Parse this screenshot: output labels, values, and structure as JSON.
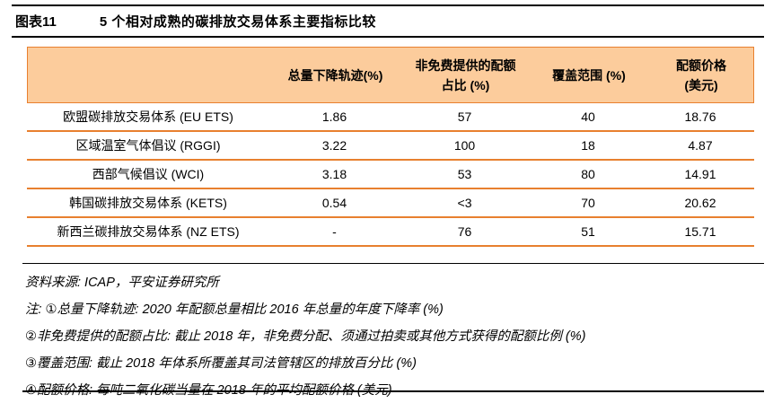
{
  "header": {
    "figure_label": "图表11",
    "title": "5 个相对成熟的碳排放交易体系主要指标比较"
  },
  "table": {
    "header": {
      "col_system": "",
      "col_cap_trajectory": "总量下降轨迹(%)",
      "col_auction_share_line1": "非免费提供的配额",
      "col_auction_share_line2": "占比 (%)",
      "col_coverage": "覆盖范围 (%)",
      "col_price_line1": "配额价格",
      "col_price_line2": "(美元)"
    },
    "rows": [
      {
        "name": "欧盟碳排放交易体系 (EU ETS)",
        "cap_trajectory": "1.86",
        "auction_share": "57",
        "coverage": "40",
        "price": "18.76"
      },
      {
        "name": "区域温室气体倡议 (RGGI)",
        "cap_trajectory": "3.22",
        "auction_share": "100",
        "coverage": "18",
        "price": "4.87"
      },
      {
        "name": "西部气候倡议 (WCI)",
        "cap_trajectory": "3.18",
        "auction_share": "53",
        "coverage": "80",
        "price": "14.91"
      },
      {
        "name": "韩国碳排放交易体系 (KETS)",
        "cap_trajectory": "0.54",
        "auction_share": "<3",
        "coverage": "70",
        "price": "20.62"
      },
      {
        "name": "新西兰碳排放交易体系 (NZ ETS)",
        "cap_trajectory": "-",
        "auction_share": "76",
        "coverage": "51",
        "price": "15.71"
      }
    ]
  },
  "footnotes": {
    "source": "资料来源: ICAP，平安证券研究所",
    "notes": [
      "注: ①总量下降轨迹: 2020 年配额总量相比 2016 年总量的年度下降率 (%)",
      "②非免费提供的配额占比: 截止 2018 年，非免费分配、须通过拍卖或其他方式获得的配额比例 (%)",
      "③覆盖范围: 截止 2018 年体系所覆盖其司法管辖区的排放百分比 (%)",
      "④配额价格: 每吨二氧化碳当量在 2018 年的平均配额价格 (美元)"
    ]
  },
  "colors": {
    "header_background": "#FCCC9C",
    "table_border_orange": "#E8802F",
    "rule_black": "#000000"
  }
}
